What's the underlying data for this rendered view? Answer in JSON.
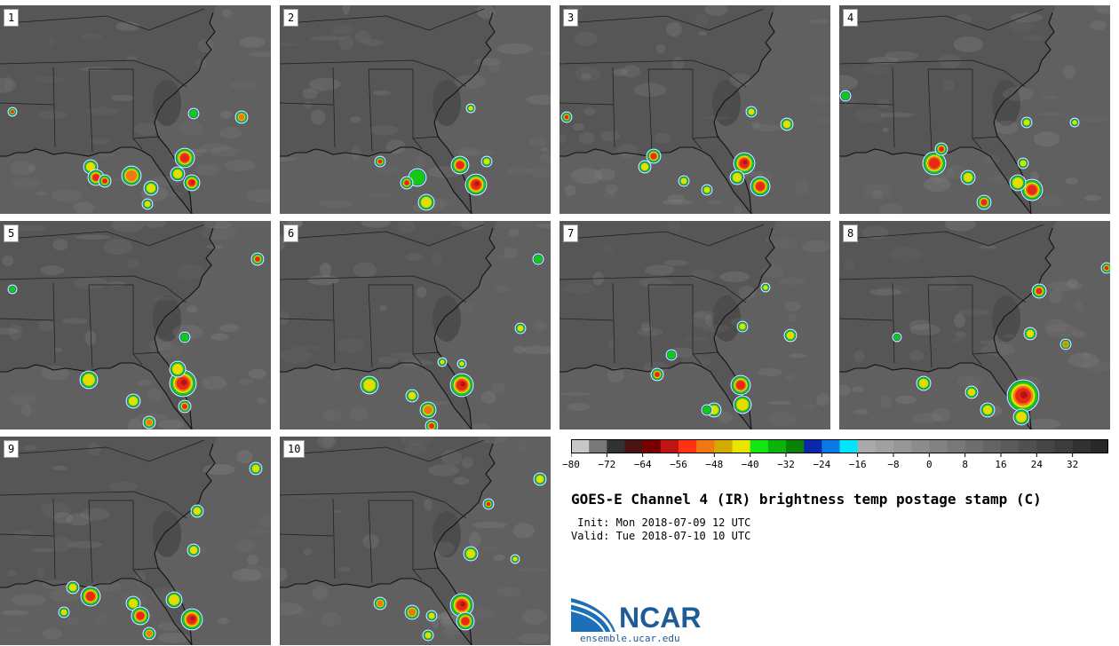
{
  "panels": [
    {
      "label": "1"
    },
    {
      "label": "2"
    },
    {
      "label": "3"
    },
    {
      "label": "4"
    },
    {
      "label": "5"
    },
    {
      "label": "6"
    },
    {
      "label": "7"
    },
    {
      "label": "8"
    },
    {
      "label": "9"
    },
    {
      "label": "10"
    }
  ],
  "colorbar": {
    "min": -80,
    "max": 40,
    "step": 4,
    "tick_labels": [
      "−80",
      "−72",
      "−64",
      "−56",
      "−48",
      "−40",
      "−32",
      "−24",
      "−16",
      "−8",
      "0",
      "8",
      "16",
      "24",
      "32"
    ],
    "tick_values": [
      -80,
      -72,
      -64,
      -56,
      -48,
      -40,
      -32,
      -24,
      -16,
      -8,
      0,
      8,
      16,
      24,
      32
    ],
    "colors": [
      "#c8c8c8",
      "#787878",
      "#323232",
      "#4b1414",
      "#780000",
      "#be1414",
      "#ff3214",
      "#f07814",
      "#d2aa00",
      "#e6e600",
      "#14e614",
      "#0ab40a",
      "#0a820a",
      "#0a28aa",
      "#0a78e6",
      "#00e6ff",
      "#aaaaaa",
      "#a0a0a0",
      "#969696",
      "#8c8c8c",
      "#828282",
      "#787878",
      "#6e6e6e",
      "#646464",
      "#5a5a5a",
      "#505050",
      "#464646",
      "#3c3c3c",
      "#323232",
      "#282828"
    ]
  },
  "title": "GOES-E Channel 4 (IR) brightness temp postage stamp (C)",
  "init": " Init: Mon 2018-07-09 12 UTC",
  "valid": "Valid: Tue 2018-07-10 10 UTC",
  "logo": {
    "name": "NCAR",
    "url": "ensemble.ucar.edu"
  },
  "colors": {
    "map_bg": "#5e5e5e",
    "land": "#5a5a5a",
    "border": "#1a1a1a",
    "brand": "#1d5c96"
  }
}
